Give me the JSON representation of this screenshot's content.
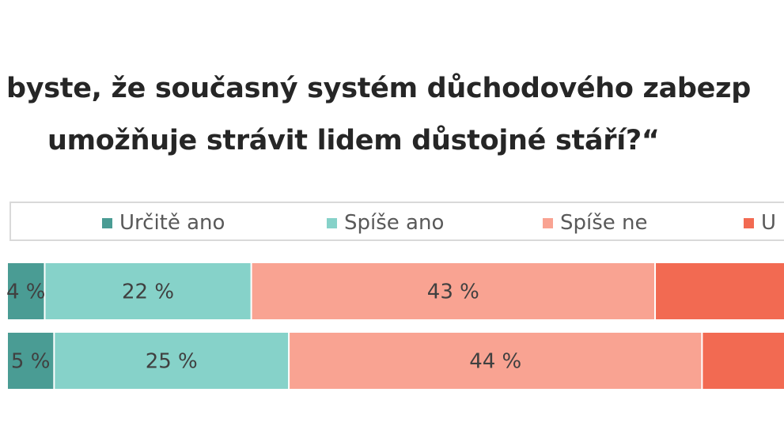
{
  "title": {
    "line1": "byste, že současný systém důchodového zabezp",
    "line2": "umožňuje strávit lidem důstojné stáří?“"
  },
  "legend": [
    {
      "label": "Určitě ano",
      "color": "#4a9c94"
    },
    {
      "label": "Spíše ano",
      "color": "#86d2c9"
    },
    {
      "label": "Spíše ne",
      "color": "#f9a392"
    },
    {
      "label": "U",
      "color": "#f26a52"
    }
  ],
  "chart_data": {
    "type": "bar",
    "orientation": "horizontal",
    "stacked": "percent",
    "title": "byste, že současný systém důchodového zabezp umožňuje strávit lidem důstojné stáří?“",
    "xlim": [
      0,
      100
    ],
    "grid": false,
    "legend_position": "top",
    "series": [
      {
        "name": "Určitě ano",
        "color": "#4a9c94",
        "values": [
          4,
          5
        ],
        "labels": [
          "4 %",
          "5 %"
        ]
      },
      {
        "name": "Spíše ano",
        "color": "#86d2c9",
        "values": [
          22,
          25
        ],
        "labels": [
          "22 %",
          "25 %"
        ]
      },
      {
        "name": "Spíše ne",
        "color": "#f9a392",
        "values": [
          43,
          44
        ],
        "labels": [
          "43 %",
          "44 %"
        ]
      },
      {
        "name": "U",
        "color": "#f26a52",
        "values": [
          31,
          26
        ],
        "labels": [
          "",
          ""
        ]
      }
    ]
  }
}
